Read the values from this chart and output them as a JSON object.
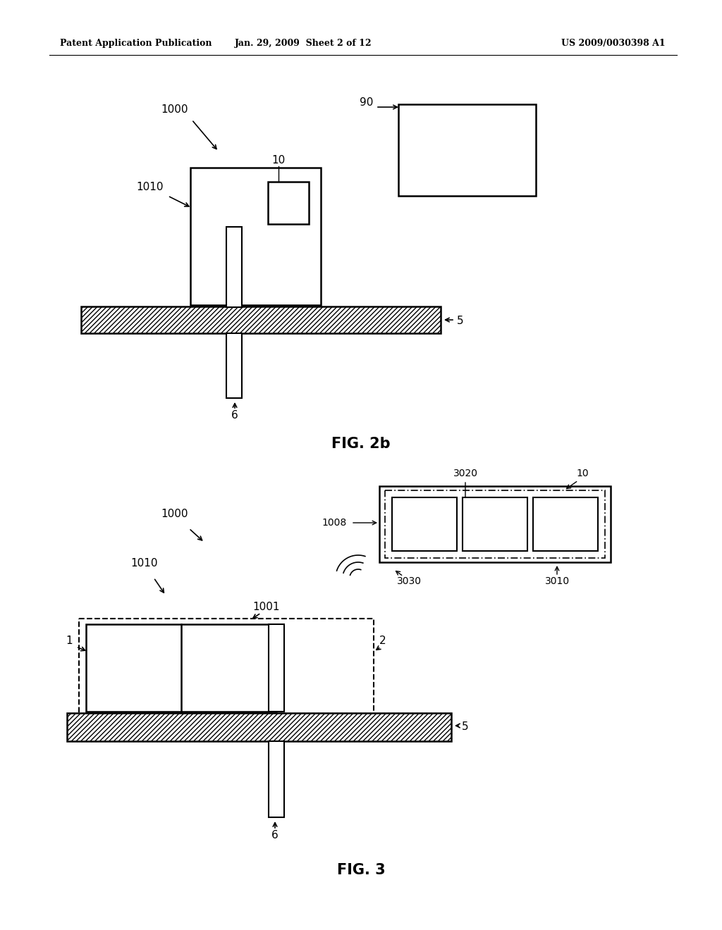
{
  "bg_color": "#ffffff",
  "header_left": "Patent Application Publication",
  "header_mid": "Jan. 29, 2009  Sheet 2 of 12",
  "header_right": "US 2009/0030398 A1",
  "fig2b_title": "FIG. 2b",
  "fig3_title": "FIG. 3",
  "fig2b": {
    "label_1000": "1000",
    "label_90": "90",
    "label_1010": "1010",
    "label_10": "10",
    "label_5": "5",
    "label_6": "6"
  },
  "fig3": {
    "label_1000": "1000",
    "label_1008": "1008",
    "label_1010": "1010",
    "label_1001": "1001",
    "label_3020": "3020",
    "label_10": "10",
    "label_3030": "3030",
    "label_3010": "3010",
    "label_1": "1",
    "label_2": "2",
    "label_5": "5",
    "label_6": "6"
  }
}
